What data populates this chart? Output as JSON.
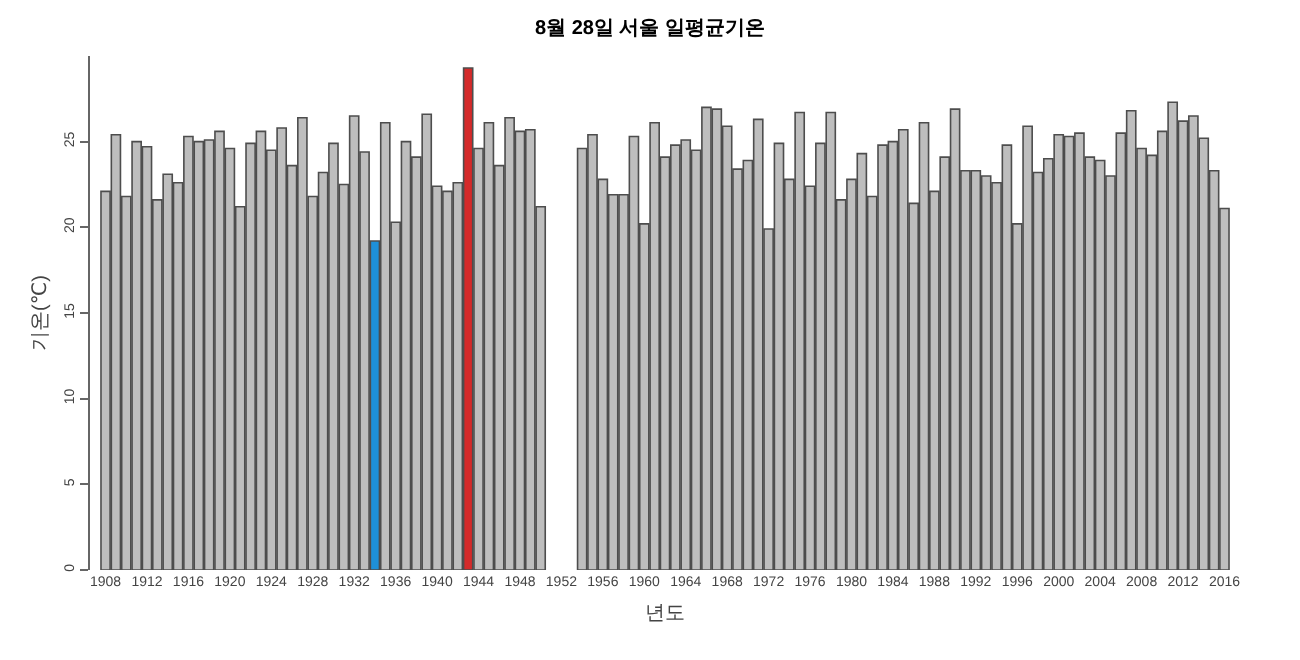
{
  "chart_data": {
    "type": "bar",
    "title": "8월 28일 서울 일평균기온",
    "xlabel": "년도",
    "ylabel": "기온(℃)",
    "categories": [
      "1908",
      null,
      null,
      null,
      "1912",
      null,
      null,
      null,
      "1916",
      null,
      null,
      null,
      "1920",
      null,
      null,
      null,
      "1924",
      null,
      null,
      null,
      "1928",
      null,
      null,
      null,
      "1932",
      null,
      null,
      null,
      "1936",
      null,
      null,
      null,
      "1940",
      null,
      null,
      null,
      "1944",
      null,
      null,
      null,
      "1948",
      null,
      null,
      null,
      "1952",
      null,
      null,
      null,
      "1956",
      null,
      null,
      null,
      "1960",
      null,
      null,
      null,
      "1964",
      null,
      null,
      null,
      "1968",
      null,
      null,
      null,
      "1972",
      null,
      null,
      null,
      "1976",
      null,
      null,
      null,
      "1980",
      null,
      null,
      null,
      "1984",
      null,
      null,
      null,
      "1988",
      null,
      null,
      null,
      "1992",
      null,
      null,
      null,
      "1996",
      null,
      null,
      null,
      "2000",
      null,
      null,
      null,
      "2004",
      null,
      null,
      null,
      "2008",
      null,
      null,
      null,
      "2012",
      null,
      null,
      null,
      "2016"
    ],
    "values": [
      22.1,
      25.4,
      21.8,
      25.0,
      24.7,
      21.6,
      23.1,
      22.6,
      25.3,
      25.0,
      25.1,
      25.6,
      24.6,
      21.2,
      24.9,
      25.6,
      24.5,
      25.8,
      23.6,
      26.4,
      21.8,
      23.2,
      24.9,
      22.5,
      26.5,
      24.4,
      19.2,
      26.1,
      20.3,
      25.0,
      24.1,
      26.6,
      22.4,
      22.1,
      22.6,
      29.3,
      24.6,
      26.1,
      23.6,
      26.4,
      25.6,
      25.7,
      21.2,
      null,
      null,
      null,
      24.6,
      25.4,
      22.8,
      21.9,
      21.9,
      25.3,
      20.2,
      26.1,
      24.1,
      24.8,
      25.1,
      24.5,
      27.0,
      26.9,
      25.9,
      23.4,
      23.9,
      26.3,
      19.9,
      24.9,
      22.8,
      26.7,
      22.4,
      24.9,
      26.7,
      21.6,
      22.8,
      24.3,
      21.8,
      24.8,
      25.0,
      25.7,
      21.4,
      26.1,
      22.1,
      24.1,
      26.9,
      23.3,
      23.3,
      23.0,
      22.6,
      24.8,
      20.2,
      25.9,
      23.2,
      24.0,
      25.4,
      25.3,
      25.5,
      24.1,
      23.9,
      23.0,
      25.5,
      26.8,
      24.6,
      24.2,
      25.6,
      27.3,
      26.2,
      26.5,
      25.2,
      23.3,
      21.1
    ],
    "colors": [
      "#bebebe",
      "#bebebe",
      "#bebebe",
      "#bebebe",
      "#bebebe",
      "#bebebe",
      "#bebebe",
      "#bebebe",
      "#bebebe",
      "#bebebe",
      "#bebebe",
      "#bebebe",
      "#bebebe",
      "#bebebe",
      "#bebebe",
      "#bebebe",
      "#bebebe",
      "#bebebe",
      "#bebebe",
      "#bebebe",
      "#bebebe",
      "#bebebe",
      "#bebebe",
      "#bebebe",
      "#bebebe",
      "#bebebe",
      "#1e90d8",
      "#bebebe",
      "#bebebe",
      "#bebebe",
      "#bebebe",
      "#bebebe",
      "#bebebe",
      "#bebebe",
      "#bebebe",
      "#d42a2a",
      "#bebebe",
      "#bebebe",
      "#bebebe",
      "#bebebe",
      "#bebebe",
      "#bebebe",
      "#bebebe",
      "#bebebe",
      "#bebebe",
      "#bebebe",
      "#bebebe",
      "#bebebe",
      "#bebebe",
      "#bebebe",
      "#bebebe",
      "#bebebe",
      "#bebebe",
      "#bebebe",
      "#bebebe",
      "#bebebe",
      "#bebebe",
      "#bebebe",
      "#bebebe",
      "#bebebe",
      "#bebebe",
      "#bebebe",
      "#bebebe",
      "#bebebe",
      "#bebebe",
      "#bebebe",
      "#bebebe",
      "#bebebe",
      "#bebebe",
      "#bebebe",
      "#bebebe",
      "#bebebe",
      "#bebebe",
      "#bebebe",
      "#bebebe",
      "#bebebe",
      "#bebebe",
      "#bebebe",
      "#bebebe",
      "#bebebe",
      "#bebebe",
      "#bebebe",
      "#bebebe",
      "#bebebe",
      "#bebebe",
      "#bebebe",
      "#bebebe",
      "#bebebe",
      "#bebebe",
      "#bebebe",
      "#bebebe",
      "#bebebe",
      "#bebebe",
      "#bebebe",
      "#bebebe",
      "#bebebe",
      "#bebebe",
      "#bebebe",
      "#bebebe",
      "#bebebe",
      "#bebebe",
      "#bebebe",
      "#bebebe",
      "#bebebe",
      "#bebebe",
      "#bebebe",
      "#bebebe",
      "#bebebe",
      "#bebebe"
    ],
    "ylim": [
      0,
      30
    ],
    "yticks": [
      0,
      5,
      10,
      15,
      20,
      25
    ],
    "grid": false
  }
}
